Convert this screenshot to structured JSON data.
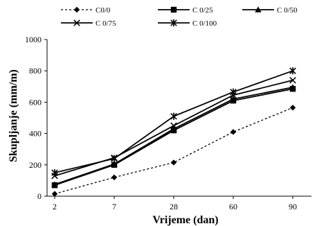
{
  "chart_data": {
    "type": "line",
    "title": "",
    "xlabel": "Vrijeme (dan)",
    "ylabel": "Skupljanje (mm/m)",
    "categories": [
      "2",
      "7",
      "28",
      "60",
      "90"
    ],
    "ylim": [
      0,
      1000
    ],
    "yticks": [
      "0",
      "200",
      "400",
      "600",
      "800",
      "1000"
    ],
    "grid": false,
    "legend_position": "top",
    "series": [
      {
        "name": "C0/0",
        "values": [
          15,
          120,
          215,
          410,
          565
        ],
        "marker": "diamond",
        "line_style": "dotted",
        "color": "#000000"
      },
      {
        "name": "C 0/25",
        "values": [
          70,
          200,
          420,
          610,
          685
        ],
        "marker": "square",
        "line_style": "solid",
        "color": "#000000"
      },
      {
        "name": "C 0/50",
        "values": [
          75,
          205,
          430,
          620,
          695
        ],
        "marker": "triangle",
        "line_style": "solid",
        "color": "#000000"
      },
      {
        "name": "C 0/75",
        "values": [
          130,
          245,
          450,
          645,
          740
        ],
        "marker": "x",
        "line_style": "solid",
        "color": "#000000"
      },
      {
        "name": "C 0/100",
        "values": [
          150,
          240,
          510,
          665,
          800
        ],
        "marker": "asterisk",
        "line_style": "solid",
        "color": "#000000"
      }
    ]
  }
}
